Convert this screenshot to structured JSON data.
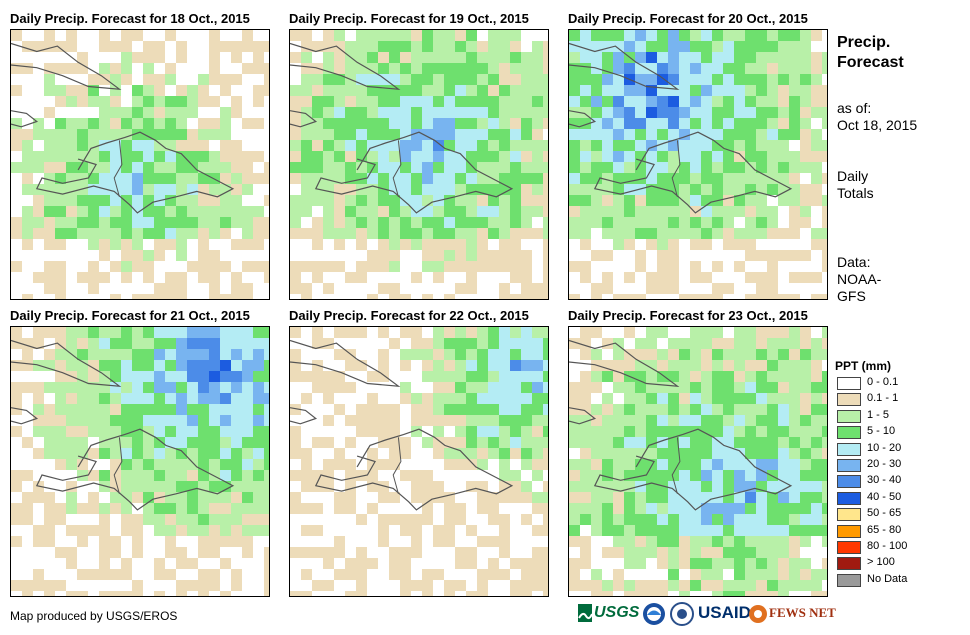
{
  "panels": [
    {
      "title": "Daily Precip. Forecast for 18 Oct., 2015",
      "wet_center": [
        0.45,
        0.55
      ],
      "spread": 0.45,
      "bias": 0.0
    },
    {
      "title": "Daily Precip. Forecast for 19 Oct., 2015",
      "wet_center": [
        0.5,
        0.4
      ],
      "spread": 0.5,
      "bias": 0.6
    },
    {
      "title": "Daily Precip. Forecast for 20 Oct., 2015",
      "wet_center": [
        0.3,
        0.2
      ],
      "spread": 0.55,
      "bias": 1.1
    },
    {
      "title": "Daily Precip. Forecast for 21 Oct., 2015",
      "wet_center": [
        0.75,
        0.15
      ],
      "spread": 0.45,
      "bias": 1.4
    },
    {
      "title": "Daily Precip. Forecast for 22 Oct., 2015",
      "wet_center": [
        0.85,
        0.15
      ],
      "spread": 0.35,
      "bias": 0.6
    },
    {
      "title": "Daily Precip. Forecast for 23 Oct., 2015",
      "wet_center": [
        0.6,
        0.6
      ],
      "spread": 0.6,
      "bias": 0.7
    }
  ],
  "side": {
    "heading": "Precip. Forecast",
    "asof_label": "as of:",
    "asof_date": "Oct 18, 2015",
    "totals_label": "Daily Totals",
    "data_label": "Data:",
    "data_source": "NOAA-GFS"
  },
  "legend": {
    "title": "PPT (mm)",
    "items": [
      {
        "label": "0 - 0.1",
        "color": "#ffffff"
      },
      {
        "label": "0.1 - 1",
        "color": "#eddcb9"
      },
      {
        "label": "1 - 5",
        "color": "#b8f0a8"
      },
      {
        "label": "5 - 10",
        "color": "#6ee06e"
      },
      {
        "label": "10 - 20",
        "color": "#b4ecf4"
      },
      {
        "label": "20 - 30",
        "color": "#78b4f0"
      },
      {
        "label": "30 - 40",
        "color": "#4c8ce8"
      },
      {
        "label": "40 - 50",
        "color": "#1c5ce0"
      },
      {
        "label": "50 - 65",
        "color": "#ffe68c"
      },
      {
        "label": "65 - 80",
        "color": "#ff9a00"
      },
      {
        "label": "80 - 100",
        "color": "#ff3800"
      },
      {
        "label": "> 100",
        "color": "#a01a10"
      },
      {
        "label": "No Data",
        "color": "#9a9a9a"
      }
    ]
  },
  "credit": "Map produced by USGS/EROS",
  "logos": {
    "usgs": "USGS",
    "usaid": "USAID",
    "fewsnet": "FEWS NET"
  }
}
